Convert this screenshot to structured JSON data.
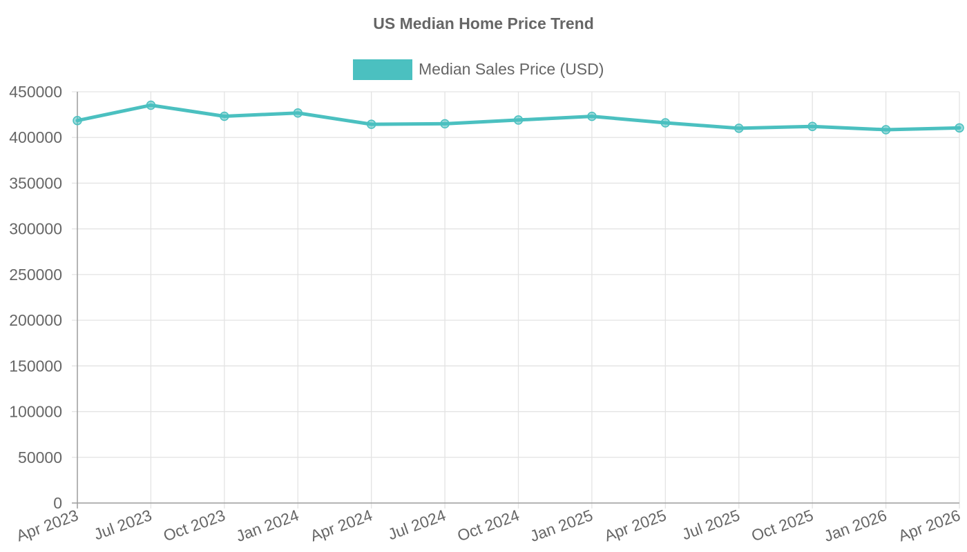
{
  "chart_data": {
    "type": "line",
    "title": "US Median Home Price Trend",
    "xlabel": "",
    "ylabel": "",
    "x": [
      "Apr 2023",
      "Jul 2023",
      "Oct 2023",
      "Jan 2024",
      "Apr 2024",
      "Jul 2024",
      "Oct 2024",
      "Jan 2025",
      "Apr 2025",
      "Jul 2025",
      "Oct 2025",
      "Jan 2026",
      "Apr 2026"
    ],
    "series": [
      {
        "name": "Median Sales Price (USD)",
        "color": "#4bc0c0",
        "values": [
          418500,
          435300,
          423200,
          426800,
          414400,
          415000,
          419100,
          423100,
          416000,
          410100,
          412100,
          408500,
          410500
        ]
      }
    ],
    "yticks": [
      "0",
      "50000",
      "100000",
      "150000",
      "200000",
      "250000",
      "300000",
      "350000",
      "400000",
      "450000"
    ],
    "ylim": [
      0,
      450000
    ],
    "grid": true,
    "legend_position": "top"
  }
}
